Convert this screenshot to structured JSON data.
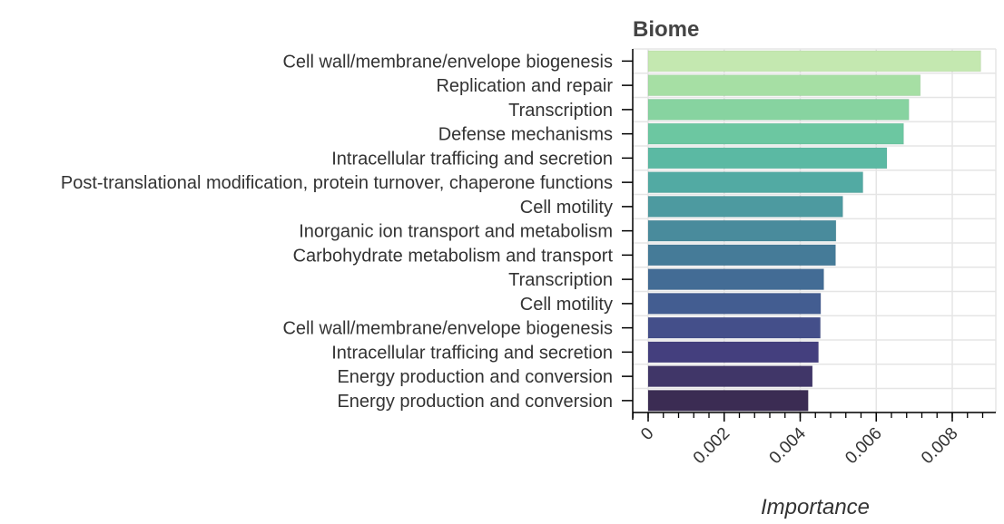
{
  "chart_data": {
    "type": "bar",
    "orientation": "horizontal",
    "title": "Biome",
    "xlabel": "Importance",
    "ylabel": "",
    "xlim": [
      -0.0004,
      0.0091
    ],
    "xticks": [
      0,
      0.002,
      0.004,
      0.006,
      0.008
    ],
    "xtick_labels": [
      "0",
      "0.002",
      "0.004",
      "0.006",
      "0.008"
    ],
    "grid": true,
    "legend": "none",
    "categories": [
      "Cell wall/membrane/envelope biogenesis",
      "Replication and repair",
      "Transcription",
      "Defense mechanisms",
      "Intracellular trafficing and secretion",
      "Post-translational modification, protein turnover, chaperone functions",
      "Cell motility",
      "Inorganic ion transport and metabolism",
      "Carbohydrate metabolism and transport",
      "Transcription",
      "Cell motility",
      "Cell wall/membrane/envelope biogenesis",
      "Intracellular trafficing and secretion",
      "Energy production and conversion",
      "Energy production and conversion"
    ],
    "values": [
      0.00875,
      0.00716,
      0.00686,
      0.00672,
      0.00628,
      0.00565,
      0.00512,
      0.00494,
      0.00493,
      0.00462,
      0.00454,
      0.00453,
      0.00448,
      0.00432,
      0.00421
    ],
    "colors": [
      "#c4e8b0",
      "#a6dfa4",
      "#87d3a0",
      "#6cc7a1",
      "#5bb9a3",
      "#52aaa3",
      "#4d9aa0",
      "#498b9c",
      "#457b98",
      "#436c95",
      "#435d91",
      "#444f8a",
      "#443f7e",
      "#403668",
      "#3b2c53"
    ]
  }
}
